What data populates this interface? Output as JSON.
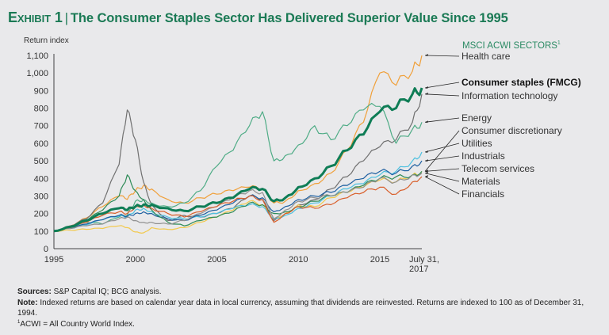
{
  "header": {
    "exhibit": "Exhibit 1",
    "separator": "|",
    "title": "The Consumer Staples Sector Has Delivered Superior Value Since 1995"
  },
  "footer": {
    "sources_label": "Sources:",
    "sources_text": " S&P Capital IQ; BCG analysis.",
    "note_label": "Note:",
    "note_text": " Indexed returns are based on calendar year data in local currency, assuming that dividends are reinvested. Returns are indexed to 100 as of December 31, 1994.",
    "footnote_marker": "1",
    "footnote_text": "ACWI = All Country World Index."
  },
  "chart_data": {
    "type": "line",
    "title": "The Consumer Staples Sector Has Delivered Superior Value Since 1995",
    "xlabel": "",
    "ylabel": "Return index",
    "xlim": [
      1995,
      2017.58
    ],
    "ylim": [
      0,
      1100
    ],
    "yticks": [
      0,
      100,
      200,
      300,
      400,
      500,
      600,
      700,
      800,
      900,
      1000,
      1100
    ],
    "ytick_labels": [
      "0",
      "100",
      "200",
      "300",
      "400",
      "500",
      "600",
      "700",
      "800",
      "900",
      "1,000",
      "1,100"
    ],
    "xticks": [
      1995,
      2000,
      2005,
      2010,
      2015,
      2017.58
    ],
    "xtick_labels": [
      "1995",
      "2000",
      "2005",
      "2010",
      "2015",
      "July 31,\n2017"
    ],
    "legend_title": "MSCI ACWI SECTORS",
    "legend_title_footnote": "1",
    "legend_placement": "right",
    "grid": false,
    "x": [
      1995,
      1996,
      1997,
      1998,
      1999,
      1999.5,
      2000,
      2000.5,
      2001,
      2002,
      2003,
      2004,
      2005,
      2006,
      2007,
      2007.8,
      2008.5,
      2009.2,
      2010,
      2011,
      2012,
      2013,
      2014,
      2015,
      2016,
      2017,
      2017.58
    ],
    "series": [
      {
        "name": "Health care",
        "color": "#f0a03a",
        "bold": false,
        "values": [
          100,
          130,
          175,
          240,
          300,
          280,
          330,
          360,
          340,
          280,
          260,
          290,
          310,
          330,
          350,
          340,
          260,
          270,
          330,
          370,
          430,
          560,
          720,
          1000,
          930,
          1010,
          1100
        ]
      },
      {
        "name": "Consumer staples (FMCG)",
        "color": "#0f7d56",
        "bold": true,
        "values": [
          100,
          125,
          160,
          200,
          230,
          220,
          240,
          250,
          250,
          230,
          215,
          240,
          260,
          290,
          340,
          340,
          270,
          290,
          350,
          400,
          470,
          560,
          650,
          780,
          800,
          880,
          915
        ]
      },
      {
        "name": "Information technology",
        "color": "#707070",
        "bold": false,
        "values": [
          100,
          130,
          170,
          260,
          480,
          790,
          620,
          380,
          250,
          160,
          190,
          180,
          200,
          230,
          300,
          280,
          160,
          200,
          250,
          280,
          340,
          410,
          500,
          580,
          620,
          720,
          880
        ]
      },
      {
        "name": "Energy",
        "color": "#4fac86",
        "bold": false,
        "values": [
          100,
          120,
          150,
          140,
          180,
          190,
          270,
          280,
          260,
          240,
          260,
          330,
          470,
          560,
          700,
          780,
          500,
          530,
          590,
          700,
          620,
          700,
          790,
          810,
          600,
          680,
          720
        ]
      },
      {
        "name": "Consumer discretionary",
        "color": "#f2c94c",
        "bold": false,
        "values": [
          100,
          105,
          110,
          115,
          130,
          120,
          95,
          90,
          120,
          110,
          120,
          150,
          180,
          220,
          270,
          250,
          170,
          200,
          250,
          240,
          290,
          320,
          350,
          390,
          380,
          420,
          440
        ]
      },
      {
        "name": "Utilities",
        "color": "#4ec1e0",
        "bold": false,
        "values": [
          100,
          115,
          135,
          165,
          185,
          180,
          220,
          230,
          210,
          180,
          170,
          180,
          200,
          230,
          250,
          240,
          170,
          190,
          230,
          260,
          300,
          340,
          370,
          420,
          440,
          500,
          550
        ]
      },
      {
        "name": "Industrials",
        "color": "#1d5fa0",
        "bold": false,
        "values": [
          100,
          115,
          140,
          165,
          190,
          185,
          200,
          210,
          200,
          170,
          160,
          190,
          220,
          260,
          300,
          290,
          210,
          240,
          280,
          300,
          320,
          360,
          400,
          440,
          430,
          470,
          500
        ]
      },
      {
        "name": "Telecom services",
        "color": "#2e8b57",
        "bold": false,
        "values": [
          100,
          120,
          160,
          220,
          300,
          420,
          330,
          280,
          220,
          150,
          130,
          160,
          180,
          210,
          260,
          250,
          200,
          210,
          240,
          270,
          300,
          320,
          360,
          400,
          410,
          420,
          440
        ]
      },
      {
        "name": "Materials",
        "color": "#909090",
        "bold": false,
        "values": [
          100,
          115,
          130,
          140,
          170,
          180,
          160,
          150,
          150,
          140,
          160,
          200,
          240,
          290,
          330,
          320,
          170,
          220,
          270,
          290,
          300,
          320,
          350,
          400,
          380,
          420,
          430
        ]
      },
      {
        "name": "Financials",
        "color": "#d95f2b",
        "bold": false,
        "values": [
          100,
          120,
          150,
          190,
          210,
          200,
          240,
          250,
          230,
          200,
          180,
          210,
          240,
          270,
          300,
          280,
          150,
          200,
          240,
          230,
          250,
          290,
          320,
          350,
          310,
          380,
          410
        ]
      }
    ]
  }
}
